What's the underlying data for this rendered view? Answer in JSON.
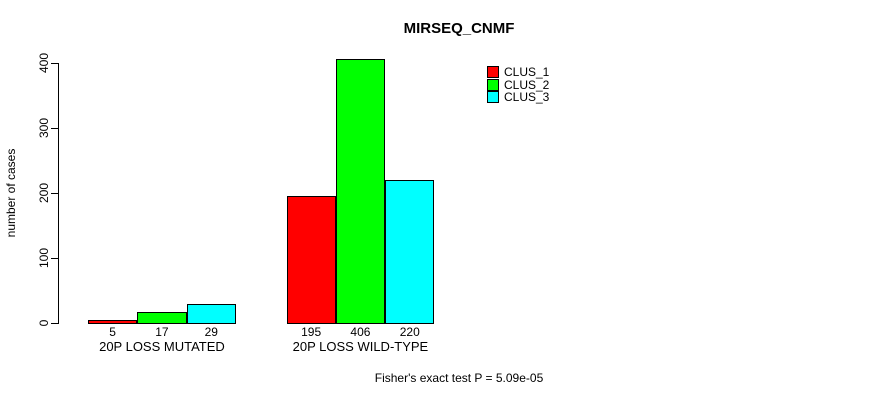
{
  "chart_data": {
    "type": "bar",
    "title": "MIRSEQ_CNMF",
    "xlabel": "",
    "ylabel": "number of cases",
    "categories": [
      "20P LOSS MUTATED",
      "20P LOSS WILD-TYPE"
    ],
    "series": [
      {
        "name": "CLUS_1",
        "color": "#ff0000",
        "values": [
          5,
          195
        ]
      },
      {
        "name": "CLUS_2",
        "color": "#00ff00",
        "values": [
          17,
          406
        ]
      },
      {
        "name": "CLUS_3",
        "color": "#00ffff",
        "values": [
          29,
          220
        ]
      }
    ],
    "yticks": [
      0,
      100,
      200,
      300,
      400
    ],
    "ylim": [
      0,
      406
    ],
    "grid": false,
    "bar_value_labels_shown": true,
    "legend_position": "top-right",
    "annotation": "Fisher's exact test P = 5.09e-05"
  },
  "colors": {
    "background": "#ffffff",
    "axis": "#000000",
    "text": "#000000"
  }
}
